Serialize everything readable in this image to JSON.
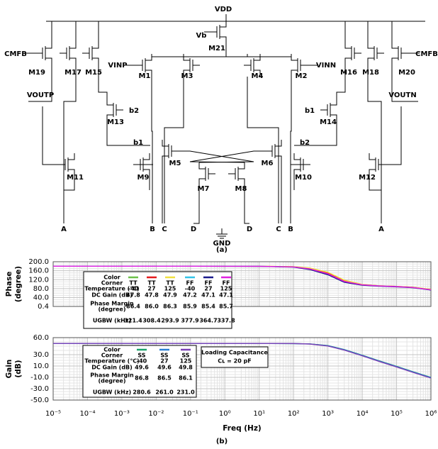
{
  "circuit": {
    "labels": [
      "VDD",
      "Vb",
      "M21",
      "CMFB",
      "M19",
      "M17",
      "M15",
      "VINP",
      "M1",
      "M3",
      "M4",
      "M2",
      "VINN",
      "M16",
      "M18",
      "M20",
      "CMFB",
      "VOUTP",
      "VOUTN",
      "b2",
      "M13",
      "b1",
      "M14",
      "b1",
      "M5",
      "M6",
      "b2",
      "M11",
      "M9",
      "M7",
      "M8",
      "M10",
      "M12",
      "A",
      "B",
      "C",
      "D",
      "D",
      "C",
      "B",
      "A",
      "GND"
    ],
    "caption": "(a)"
  },
  "chart_data": [
    {
      "type": "line",
      "y_label": [
        "Phase",
        "(degree)"
      ],
      "x_scale": "log",
      "grid": true,
      "xlim": [
        1e-05,
        1000000
      ],
      "xticks": [
        1e-05,
        0.0001,
        0.001,
        0.01,
        0.1,
        1,
        10,
        100,
        1000,
        10000,
        100000,
        1000000
      ],
      "ylim": [
        0.4,
        200
      ],
      "yticks": [
        {
          "value": 200,
          "label": "200.0"
        },
        {
          "value": 160,
          "label": "160.0"
        },
        {
          "value": 120,
          "label": "120.0"
        },
        {
          "value": 80,
          "label": "80.0"
        },
        {
          "value": 40,
          "label": "40.0"
        },
        0.4
      ],
      "x": [
        1e-05,
        0.001,
        0.1,
        10,
        100,
        300,
        1000,
        3000,
        10000,
        30000,
        100000,
        300000,
        1000000
      ],
      "series": [
        {
          "color": "#6cc04a",
          "values": [
            180,
            180,
            180,
            179.8,
            177,
            168,
            147,
            112,
            97,
            92,
            89,
            85,
            75
          ]
        },
        {
          "color": "#e41a1c",
          "values": [
            180,
            180,
            180,
            179.8,
            177.5,
            170,
            150,
            115,
            98,
            93,
            90,
            86,
            76
          ]
        },
        {
          "color": "#f0e040",
          "values": [
            180,
            180,
            180,
            179.9,
            178,
            172,
            153,
            118,
            99,
            93,
            90,
            86,
            77
          ]
        },
        {
          "color": "#33c3e8",
          "values": [
            180,
            180,
            180,
            179.8,
            176.5,
            167,
            145,
            110,
            96,
            92,
            89,
            84,
            74
          ]
        },
        {
          "color": "#1a1a8c",
          "values": [
            180,
            180,
            180,
            179.7,
            176,
            165,
            142,
            108,
            95,
            91,
            88,
            84,
            74
          ]
        },
        {
          "color": "#e020e0",
          "values": [
            180,
            180,
            180,
            179.8,
            176.8,
            168,
            146,
            112,
            97,
            92,
            89,
            85,
            75
          ]
        }
      ],
      "table": {
        "row_labels": [
          "Color",
          "Corner",
          "Temperature (℃)",
          "DC Gain (dB)",
          [
            "Phase Margin",
            "(degree)"
          ],
          "UGBW (kHz)"
        ],
        "columns": [
          [
            "TT",
            "-40",
            "47.8",
            "86.4",
            "321.4"
          ],
          [
            "TT",
            "27",
            "47.8",
            "86.0",
            "308.4"
          ],
          [
            "TT",
            "125",
            "47.9",
            "86.3",
            "293.9"
          ],
          [
            "FF",
            "-40",
            "47.2",
            "85.9",
            "377.9"
          ],
          [
            "FF",
            "27",
            "47.1",
            "85.4",
            "364.7"
          ],
          [
            "FF",
            "125",
            "47.1",
            "85.7",
            "337.8"
          ]
        ]
      }
    },
    {
      "type": "line",
      "y_label": [
        "Gain",
        "(dB)"
      ],
      "x_label": "Freq (Hz)",
      "x_scale": "log",
      "grid": true,
      "xlim": [
        1e-05,
        1000000
      ],
      "xticks": [
        {
          "value": 1e-05,
          "label": "10⁻⁵"
        },
        {
          "value": 0.0001,
          "label": "10⁻⁴"
        },
        {
          "value": 0.001,
          "label": "10⁻³"
        },
        {
          "value": 0.01,
          "label": "10⁻²"
        },
        {
          "value": 0.1,
          "label": "10⁻¹"
        },
        {
          "value": 1,
          "label": "10⁰"
        },
        {
          "value": 10,
          "label": "10¹"
        },
        {
          "value": 100,
          "label": "10²"
        },
        {
          "value": 1000,
          "label": "10³"
        },
        {
          "value": 10000,
          "label": "10⁴"
        },
        {
          "value": 100000,
          "label": "10⁵"
        },
        {
          "value": 1000000,
          "label": "10⁶"
        }
      ],
      "ylim": [
        -50,
        60
      ],
      "yticks": [
        {
          "value": 60,
          "label": "60.0"
        },
        {
          "value": 30,
          "label": "30.0"
        },
        {
          "value": 10,
          "label": "10.0"
        },
        {
          "value": -10,
          "label": "-10.0"
        },
        {
          "value": -30,
          "label": "-30.0"
        },
        {
          "value": -50,
          "label": "-50.0"
        }
      ],
      "x": [
        1e-05,
        0.001,
        0.1,
        10,
        100,
        300,
        1000,
        3000,
        10000,
        30000,
        100000,
        300000,
        1000000
      ],
      "series": [
        {
          "color": "#1aa36b",
          "values": [
            49.6,
            49.6,
            49.6,
            49.6,
            49.5,
            49,
            46,
            39,
            29,
            19.5,
            9.5,
            0,
            -10
          ]
        },
        {
          "color": "#2a7fd4",
          "values": [
            49.6,
            49.6,
            49.6,
            49.6,
            49.5,
            48.9,
            45.7,
            38.6,
            28.6,
            19,
            9,
            -0.5,
            -10.5
          ]
        },
        {
          "color": "#7a3fb5",
          "values": [
            49.8,
            49.8,
            49.8,
            49.8,
            49.6,
            48.8,
            45.3,
            38,
            28,
            18.4,
            8.4,
            -1.2,
            -11.2
          ]
        }
      ],
      "table": {
        "row_labels": [
          "Color",
          "Corner",
          "Temperature (℃)",
          "DC Gain (dB)",
          [
            "Phase Margin",
            "(degree)"
          ],
          "UGBW (kHz)"
        ],
        "columns": [
          [
            "SS",
            "-40",
            "49.6",
            "86.8",
            "280.6"
          ],
          [
            "SS",
            "27",
            "49.6",
            "86.5",
            "261.0"
          ],
          [
            "SS",
            "125",
            "49.8",
            "86.1",
            "231.0"
          ]
        ]
      },
      "annotation": [
        "Loading Capacitance",
        "Cʟ = 20 pF"
      ]
    }
  ],
  "captions": [
    "(b)"
  ]
}
